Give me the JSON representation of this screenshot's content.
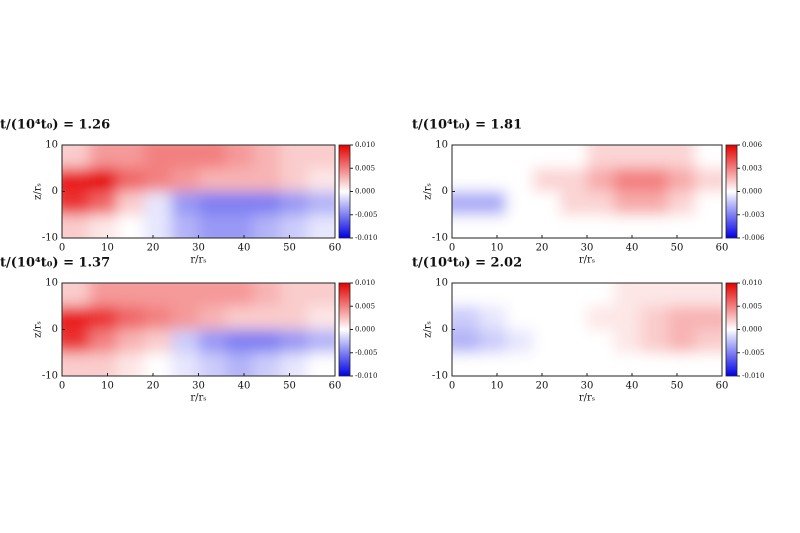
{
  "chart_data": [
    {
      "type": "heatmap",
      "title": "t/(10⁴t₀) = 1.26",
      "xlabel": "r/rₛ",
      "ylabel": "z/rₛ",
      "xlim": [
        0,
        60
      ],
      "ylim": [
        -10,
        10
      ],
      "xticks": [
        0,
        10,
        20,
        30,
        40,
        50,
        60
      ],
      "yticks": [
        -10,
        0,
        10
      ],
      "zlim": [
        -0.01,
        0.01
      ],
      "zticks": [
        {
          "value": -0.01,
          "label": "-0.010"
        },
        {
          "value": -0.005,
          "label": "-0.005"
        },
        {
          "value": 0,
          "label": "0.000"
        },
        {
          "value": 0.005,
          "label": "0.005"
        },
        {
          "value": 0.01,
          "label": "0.010"
        }
      ],
      "z": [
        [
          0.002,
          0.004,
          0.004,
          0.005,
          0.005,
          0.005,
          0.004,
          0.003,
          0.002,
          0.002
        ],
        [
          0.009,
          0.01,
          0.006,
          0.005,
          0.004,
          0.003,
          0.003,
          0.003,
          0.002,
          0.001
        ],
        [
          0.008,
          0.006,
          0.002,
          -0.001,
          -0.004,
          -0.005,
          -0.005,
          -0.005,
          -0.004,
          -0.003
        ],
        [
          0.002,
          0.001,
          0,
          -0.001,
          -0.003,
          -0.004,
          -0.004,
          -0.003,
          -0.002,
          -0.001
        ]
      ]
    },
    {
      "type": "heatmap",
      "title": "t/(10⁴t₀) = 1.81",
      "xlabel": "r/rₛ",
      "ylabel": "z/rₛ",
      "xlim": [
        0,
        60
      ],
      "ylim": [
        -10,
        10
      ],
      "xticks": [
        0,
        10,
        20,
        30,
        40,
        50,
        60
      ],
      "yticks": [
        -10,
        0,
        10
      ],
      "zlim": [
        -0.006,
        0.006
      ],
      "zticks": [
        {
          "value": -0.006,
          "label": "-0.006"
        },
        {
          "value": -0.003,
          "label": "-0.003"
        },
        {
          "value": 0,
          "label": "0.000"
        },
        {
          "value": 0.003,
          "label": "0.003"
        },
        {
          "value": 0.006,
          "label": "0.006"
        }
      ],
      "z": [
        [
          0,
          0,
          0,
          0,
          0,
          0.001,
          0.001,
          0.001,
          0.001,
          0
        ],
        [
          0,
          0,
          0,
          0.001,
          0.001,
          0.002,
          0.003,
          0.003,
          0.002,
          0.001
        ],
        [
          -0.002,
          -0.002,
          0,
          0,
          0.001,
          0.001,
          0.002,
          0.002,
          0.001,
          0
        ],
        [
          0,
          0,
          0,
          0,
          0,
          0,
          0,
          0,
          0,
          0
        ]
      ]
    },
    {
      "type": "heatmap",
      "title": "t/(10⁴t₀) = 1.37",
      "xlabel": "r/rₛ",
      "ylabel": "z/rₛ",
      "xlim": [
        0,
        60
      ],
      "ylim": [
        -10,
        10
      ],
      "xticks": [
        0,
        10,
        20,
        30,
        40,
        50,
        60
      ],
      "yticks": [
        -10,
        0,
        10
      ],
      "zlim": [
        -0.01,
        0.01
      ],
      "zticks": [
        {
          "value": -0.01,
          "label": "-0.010"
        },
        {
          "value": -0.005,
          "label": "-0.005"
        },
        {
          "value": 0,
          "label": "0.000"
        },
        {
          "value": 0.005,
          "label": "0.005"
        },
        {
          "value": 0.01,
          "label": "0.010"
        }
      ],
      "z": [
        [
          0.002,
          0.004,
          0.004,
          0.004,
          0.004,
          0.004,
          0.004,
          0.003,
          0.002,
          0.002
        ],
        [
          0.009,
          0.008,
          0.006,
          0.005,
          0.004,
          0.003,
          0.002,
          0.002,
          0.002,
          0.001
        ],
        [
          0.008,
          0.005,
          0.003,
          0.002,
          -0.002,
          -0.004,
          -0.005,
          -0.005,
          -0.004,
          -0.003
        ],
        [
          0.002,
          0.002,
          0.001,
          0,
          -0.001,
          -0.002,
          -0.003,
          -0.002,
          -0.001,
          0
        ]
      ]
    },
    {
      "type": "heatmap",
      "title": "t/(10⁴t₀) = 2.02",
      "xlabel": "r/rₛ",
      "ylabel": "z/rₛ",
      "xlim": [
        0,
        60
      ],
      "ylim": [
        -10,
        10
      ],
      "xticks": [
        0,
        10,
        20,
        30,
        40,
        50,
        60
      ],
      "yticks": [
        -10,
        0,
        10
      ],
      "zlim": [
        -0.01,
        0.01
      ],
      "zticks": [
        {
          "value": -0.01,
          "label": "-0.010"
        },
        {
          "value": -0.005,
          "label": "-0.005"
        },
        {
          "value": 0,
          "label": "0.000"
        },
        {
          "value": 0.005,
          "label": "0.005"
        },
        {
          "value": 0.01,
          "label": "0.010"
        }
      ],
      "z": [
        [
          0,
          0,
          0,
          0,
          0,
          0,
          0.001,
          0.001,
          0.001,
          0.001
        ],
        [
          -0.002,
          -0.001,
          0,
          0,
          0,
          0.001,
          0.001,
          0.002,
          0.003,
          0.003
        ],
        [
          -0.003,
          -0.002,
          -0.001,
          0,
          0,
          0,
          0.001,
          0.002,
          0.003,
          0.002
        ],
        [
          0,
          0,
          0,
          0,
          0,
          0,
          0,
          0,
          0,
          0
        ]
      ]
    }
  ]
}
